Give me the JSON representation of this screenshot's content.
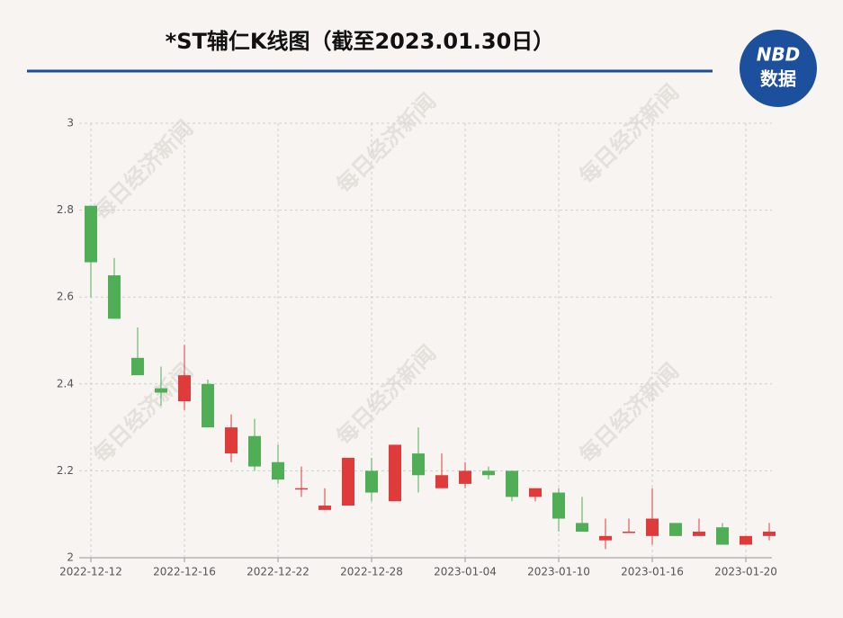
{
  "chart_data": {
    "type": "candlestick",
    "title": "*ST辅仁K线图（截至2023.01.30日）",
    "logo": {
      "top": "NBD",
      "bottom": "数据"
    },
    "watermark": "每日经济新闻",
    "categories": [
      "2022-12-12",
      null,
      null,
      null,
      "2022-12-16",
      null,
      null,
      null,
      "2022-12-22",
      null,
      null,
      null,
      "2022-12-28",
      null,
      null,
      null,
      "2023-01-04",
      null,
      null,
      null,
      "2023-01-10",
      null,
      null,
      null,
      "2023-01-16",
      null,
      null,
      null,
      "2023-01-20",
      null
    ],
    "open": [
      2.81,
      2.65,
      2.46,
      2.39,
      2.36,
      2.4,
      2.24,
      2.28,
      2.22,
      2.16,
      2.11,
      2.12,
      2.2,
      2.13,
      2.24,
      2.16,
      2.17,
      2.2,
      2.2,
      2.14,
      2.15,
      2.08,
      2.04,
      2.06,
      2.05,
      2.08,
      2.05,
      2.07,
      2.03,
      2.05
    ],
    "high": [
      2.81,
      2.69,
      2.53,
      2.44,
      2.49,
      2.41,
      2.33,
      2.32,
      2.26,
      2.21,
      2.16,
      2.23,
      2.23,
      2.26,
      2.3,
      2.24,
      2.22,
      2.21,
      2.2,
      2.16,
      2.16,
      2.14,
      2.09,
      2.09,
      2.16,
      2.08,
      2.09,
      2.08,
      2.05,
      2.08
    ],
    "low": [
      2.6,
      2.55,
      2.42,
      2.35,
      2.34,
      2.3,
      2.22,
      2.2,
      2.17,
      2.14,
      2.11,
      2.12,
      2.13,
      2.13,
      2.15,
      2.16,
      2.16,
      2.18,
      2.13,
      2.13,
      2.06,
      2.06,
      2.02,
      2.06,
      2.03,
      2.05,
      2.05,
      2.03,
      2.03,
      2.04
    ],
    "close": [
      2.68,
      2.55,
      2.42,
      2.38,
      2.42,
      2.3,
      2.3,
      2.21,
      2.18,
      2.16,
      2.12,
      2.23,
      2.15,
      2.26,
      2.19,
      2.19,
      2.2,
      2.19,
      2.14,
      2.16,
      2.09,
      2.06,
      2.05,
      2.06,
      2.09,
      2.05,
      2.06,
      2.03,
      2.05,
      2.06
    ],
    "up_color": "#e03b3b",
    "down_color": "#4fae56",
    "ylim": [
      2,
      3
    ],
    "yticks": [
      2,
      2.2,
      2.4,
      2.6,
      2.8,
      3
    ],
    "grid": true
  }
}
